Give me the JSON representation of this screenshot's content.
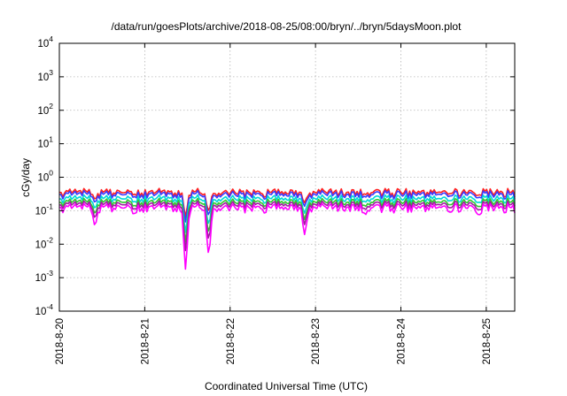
{
  "chart_data": {
    "type": "line",
    "title": "/data/run/goesPlots/archive/2018-08-25/08:00/bryn/../bryn/5daysMoon.plot",
    "xlabel": "Coordinated Universal Time (UTC)",
    "ylabel": "cGy/day",
    "y_scale": "log",
    "ylim": [
      0.0001,
      10000
    ],
    "y_ticks": [
      {
        "base": "10",
        "exp": "-4",
        "value": 0.0001
      },
      {
        "base": "10",
        "exp": "-3",
        "value": 0.001
      },
      {
        "base": "10",
        "exp": "-2",
        "value": 0.01
      },
      {
        "base": "10",
        "exp": "-1",
        "value": 0.1
      },
      {
        "base": "10",
        "exp": "0",
        "value": 1
      },
      {
        "base": "10",
        "exp": "1",
        "value": 10
      },
      {
        "base": "10",
        "exp": "2",
        "value": 100
      },
      {
        "base": "10",
        "exp": "3",
        "value": 1000
      },
      {
        "base": "10",
        "exp": "4",
        "value": 10000
      }
    ],
    "xlim": [
      "2018-08-20 00:00",
      "2018-08-25 08:00"
    ],
    "x_ticks": [
      {
        "label": "2018-8-20",
        "value": "2018-08-20"
      },
      {
        "label": "2018-8-21",
        "value": "2018-08-21"
      },
      {
        "label": "2018-8-22",
        "value": "2018-08-22"
      },
      {
        "label": "2018-8-23",
        "value": "2018-08-23"
      },
      {
        "label": "2018-8-24",
        "value": "2018-08-24"
      },
      {
        "label": "2018-8-25",
        "value": "2018-08-25"
      }
    ],
    "grid": true,
    "legend": "none",
    "series": [
      {
        "color": "#ff2020",
        "base": 0.37,
        "spread": 0.13,
        "dip_depth": 0.4
      },
      {
        "color": "#3a3aff",
        "base": 0.32,
        "spread": 0.11,
        "dip_depth": 0.45
      },
      {
        "color": "#00d8d8",
        "base": 0.24,
        "spread": 0.08,
        "dip_depth": 0.55
      },
      {
        "color": "#30c830",
        "base": 0.19,
        "spread": 0.06,
        "dip_depth": 0.65
      },
      {
        "color": "#a01ca0",
        "base": 0.16,
        "spread": 0.05,
        "dip_depth": 0.75
      },
      {
        "color": "#ff00ff",
        "base": 0.13,
        "spread": 0.05,
        "dip_depth": 1.0
      }
    ],
    "dips": [
      {
        "t": "2018-08-20 10:00",
        "min": 0.032
      },
      {
        "t": "2018-08-20 21:00",
        "min": 0.075
      },
      {
        "t": "2018-08-21 11:30",
        "min": 0.0015
      },
      {
        "t": "2018-08-21 18:00",
        "min": 0.0038
      },
      {
        "t": "2018-08-22 21:00",
        "min": 0.017
      },
      {
        "t": "2018-08-23 14:00",
        "min": 0.07
      },
      {
        "t": "2018-08-24 14:00",
        "min": 0.08
      },
      {
        "t": "2018-08-24 22:00",
        "min": 0.07
      }
    ]
  }
}
